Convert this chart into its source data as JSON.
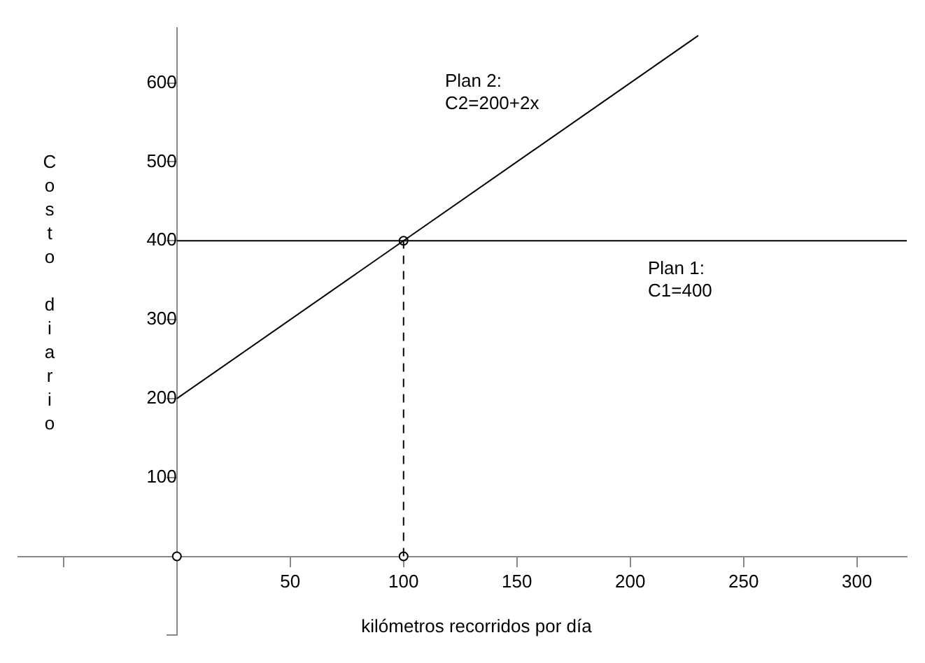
{
  "chart_data": {
    "type": "line",
    "xlabel": "kilómetros recorridos por día",
    "ylabel": "Costo diario",
    "xlim": [
      -70,
      322
    ],
    "ylim": [
      -100,
      670
    ],
    "xticks": [
      {
        "value": -50,
        "label": null
      },
      50,
      100,
      150,
      200,
      250,
      300
    ],
    "yticks": [
      {
        "value": -100,
        "label": null
      },
      100,
      200,
      300,
      400,
      500,
      600
    ],
    "series": [
      {
        "color": "#000000",
        "x": [
          0,
          230
        ],
        "values": [
          200,
          660
        ]
      },
      {
        "color": "#000000",
        "x": [
          0,
          322
        ],
        "values": [
          400,
          400
        ]
      },
      {
        "type": "line",
        "color": "#000000",
        "x": [
          100,
          100
        ],
        "values": [
          0,
          400
        ],
        "line_style": "dashed"
      },
      {
        "type": "scatter",
        "color": "#000000",
        "x": [
          0,
          100,
          100
        ],
        "values": [
          0,
          0,
          400
        ],
        "marker": "circle"
      }
    ],
    "annotations": [
      "Plan 2:\nC2=200+2x",
      "Plan 1:\nC1=400"
    ],
    "grid": false,
    "legend": false
  }
}
